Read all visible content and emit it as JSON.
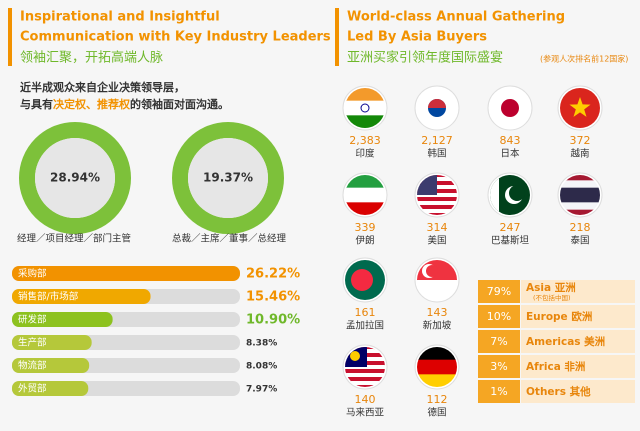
{
  "left": {
    "title": [
      "Inspirational and Insightful",
      "Communication with Key Industry Leaders"
    ],
    "subtitle": "领袖汇聚，开拓高端人脉",
    "intro": {
      "line1": "近半成观众来自企业决策领导层，",
      "line2": [
        "与具有",
        "决定权、推荐权",
        "的领袖面对面沟通。"
      ]
    },
    "donuts": [
      {
        "value": "28.94%",
        "label": "经理／项目经理／部门主管"
      },
      {
        "value": "19.37%",
        "label": "总裁／主席／董事／总经理"
      }
    ],
    "departments": [
      {
        "name": "采购部",
        "value": 26.22,
        "value_label": "26.22%"
      },
      {
        "name": "销售部/市场部",
        "value": 15.46,
        "value_label": "15.46%"
      },
      {
        "name": "研发部",
        "value": 10.9,
        "value_label": "10.90%"
      },
      {
        "name": "生产部",
        "value": 8.38,
        "value_label": "8.38%"
      },
      {
        "name": "物流部",
        "value": 8.08,
        "value_label": "8.08%"
      },
      {
        "name": "外贸部",
        "value": 7.97,
        "value_label": "7.97%"
      }
    ]
  },
  "right": {
    "title": [
      "World-class Annual Gathering",
      "Led By Asia Buyers"
    ],
    "subtitle": "亚洲买家引领年度国际盛宴",
    "note": "(参观人次排名前12国家)",
    "countries": [
      {
        "count": "2,383",
        "name": "印度"
      },
      {
        "count": "2,127",
        "name": "韩国"
      },
      {
        "count": "843",
        "name": "日本"
      },
      {
        "count": "372",
        "name": "越南"
      },
      {
        "count": "339",
        "name": "伊朗"
      },
      {
        "count": "314",
        "name": "美国"
      },
      {
        "count": "247",
        "name": "巴基斯坦"
      },
      {
        "count": "218",
        "name": "泰国"
      },
      {
        "count": "161",
        "name": "孟加拉国"
      },
      {
        "count": "143",
        "name": "新加坡"
      },
      {
        "count": "140",
        "name": "马来西亚"
      },
      {
        "count": "112",
        "name": "德国"
      }
    ],
    "regions": [
      {
        "percent": "79%",
        "name": "Asia 亚洲",
        "note": "(不包括中国)"
      },
      {
        "percent": "10%",
        "name": "Europe 欧洲"
      },
      {
        "percent": "7%",
        "name": "Americas 美洲"
      },
      {
        "percent": "3%",
        "name": "Africa 非洲"
      },
      {
        "percent": "1%",
        "name": "Others 其他"
      }
    ]
  }
}
